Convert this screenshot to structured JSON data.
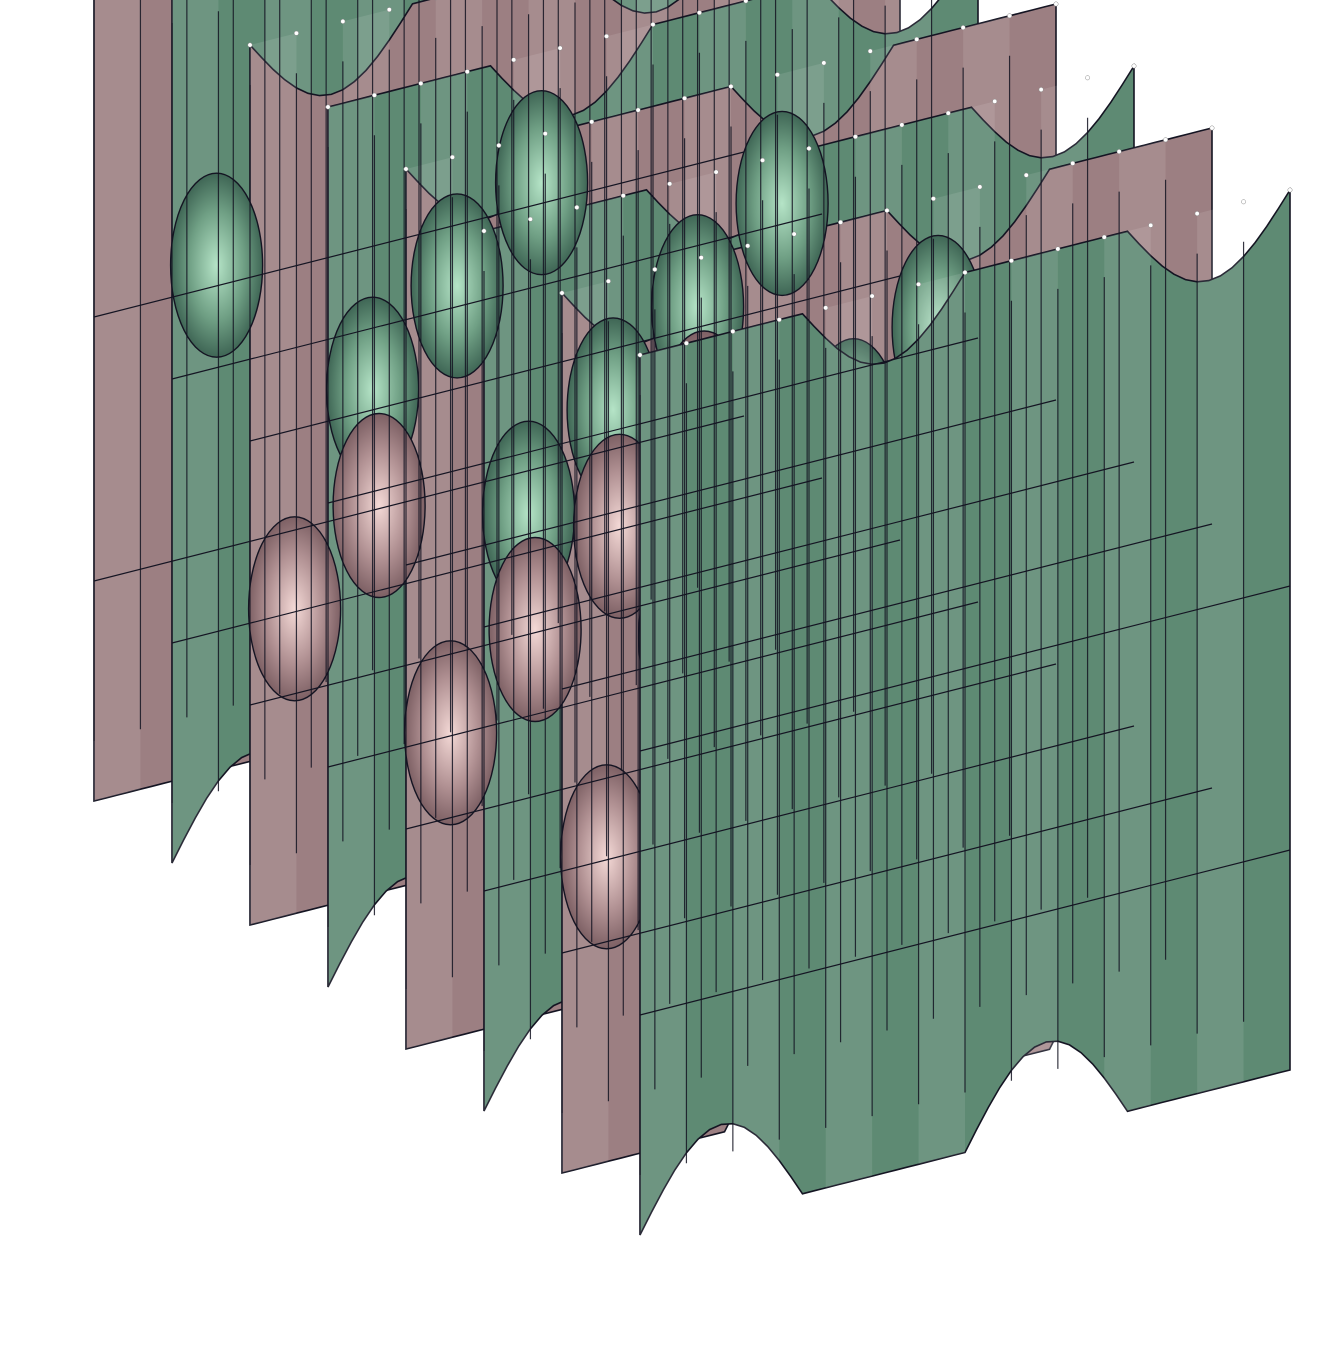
{
  "scene": {
    "subject": "minimal-surface-render",
    "colors": {
      "background": "#ffffff",
      "green_dark": "#3f6655",
      "green_mid": "#5e8a73",
      "green_light": "#b5e4c7",
      "pink_dark": "#7d6064",
      "pink_mid": "#9c7f82",
      "pink_light": "#f4d9d6",
      "edge": "#141422",
      "vertex": "#ffffff"
    }
  }
}
